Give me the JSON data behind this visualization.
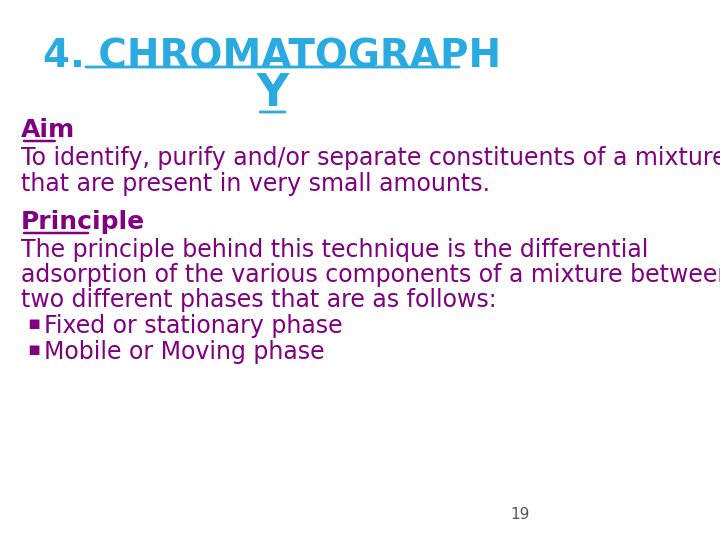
{
  "title_line1": "4. CHROMATOGRAPH",
  "title_line2": "Y",
  "title_color": "#29ABE2",
  "heading_color": "#800080",
  "body_color": "#800080",
  "background_color": "#ffffff",
  "title_fontsize": 28,
  "title2_fontsize": 32,
  "heading_fontsize": 18,
  "body_fontsize": 17,
  "page_number": "19",
  "aim_heading": "Aim",
  "aim_text_line1": "To identify, purify and/or separate constituents of a mixture",
  "aim_text_line2": "that are present in very small amounts.",
  "principle_heading": "Principle",
  "principle_text_line1": "The principle behind this technique is the differential",
  "principle_text_line2": "adsorption of the various components of a mixture between",
  "principle_text_line3": "two different phases that are as follows:",
  "bullet1": "Fixed or stationary phase",
  "bullet2": "Mobile or Moving phase",
  "bullet_char": "▪"
}
